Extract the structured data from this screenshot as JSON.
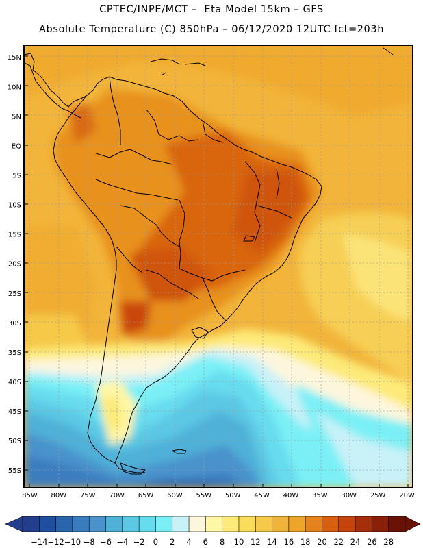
{
  "header": {
    "line1": "CPTEC/INPE/MCT –  Eta Model 15km – GFS",
    "line2": "Absolute Temperature (C) 850hPa – 06/12/2020 12UTC fct=203h"
  },
  "axes": {
    "lat_labels": [
      "15N",
      "10N",
      "5N",
      "EQ",
      "5S",
      "10S",
      "15S",
      "20S",
      "25S",
      "30S",
      "35S",
      "40S",
      "45S",
      "50S",
      "55S"
    ],
    "lat_values": [
      15,
      10,
      5,
      0,
      -5,
      -10,
      -15,
      -20,
      -25,
      -30,
      -35,
      -40,
      -45,
      -50,
      -55
    ],
    "lon_labels": [
      "85W",
      "80W",
      "75W",
      "70W",
      "65W",
      "60W",
      "55W",
      "50W",
      "45W",
      "40W",
      "35W",
      "30W",
      "25W",
      "20W"
    ],
    "lon_values": [
      -85,
      -80,
      -75,
      -70,
      -65,
      -60,
      -55,
      -50,
      -45,
      -40,
      -35,
      -30,
      -25,
      -20
    ],
    "lat_range": [
      -58,
      17
    ],
    "lon_range": [
      -86,
      -19
    ]
  },
  "colorbar": {
    "labels": [
      "-14",
      "-12",
      "-10",
      "-8",
      "-6",
      "-4",
      "-2",
      "0",
      "2",
      "4",
      "6",
      "8",
      "10",
      "12",
      "14",
      "16",
      "18",
      "20",
      "22",
      "24",
      "26",
      "28"
    ],
    "colors": [
      "#243e8e",
      "#1f4f9e",
      "#2a64ad",
      "#3a7dbf",
      "#4a92cc",
      "#4fb0d8",
      "#5cc8e4",
      "#68dcef",
      "#7af0f6",
      "#c8f1f8",
      "#fdf6dd",
      "#fff6a6",
      "#fdea78",
      "#fbdd5c",
      "#f6c94a",
      "#f1b43a",
      "#eea62a",
      "#e5841c",
      "#d85e10",
      "#c4440c",
      "#a42f0a",
      "#8a1f0a",
      "#6b1206"
    ],
    "min_color": "#243e8e",
    "max_color": "#6b1206"
  }
}
